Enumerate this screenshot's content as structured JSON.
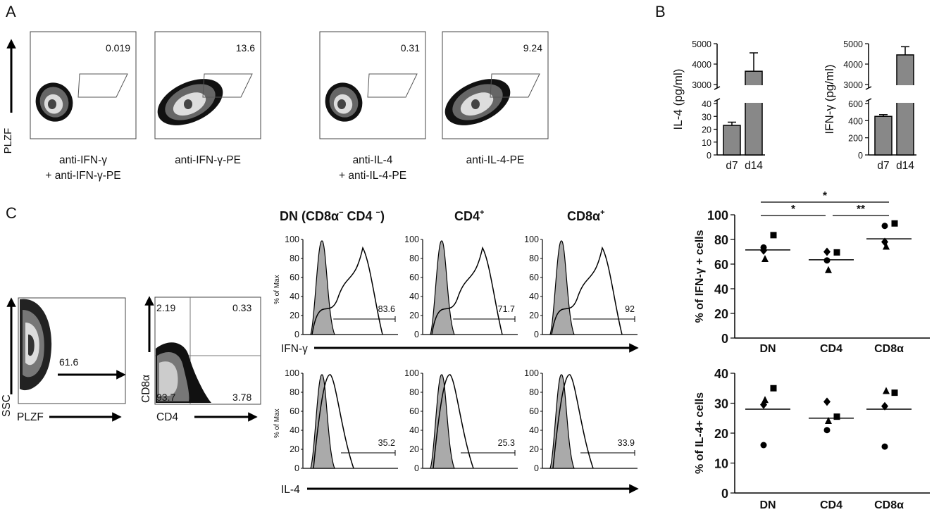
{
  "panels": {
    "a": "A",
    "b": "B",
    "c": "C"
  },
  "panel_a": {
    "y_label": "PLZF",
    "plots": [
      {
        "value": "0.019",
        "caption1": "anti-IFN-γ",
        "caption2": "+ anti-IFN-γ-PE"
      },
      {
        "value": "13.6",
        "caption1": "anti-IFN-γ-PE",
        "caption2": ""
      },
      {
        "value": "0.31",
        "caption1": "anti-IL-4",
        "caption2": "+ anti-IL-4-PE"
      },
      {
        "value": "9.24",
        "caption1": "anti-IL-4-PE",
        "caption2": ""
      }
    ]
  },
  "panel_c_gating": {
    "ssc_label": "SSC",
    "plzf_label": "PLZF",
    "plzf_gate_value": "61.6",
    "cd8_label": "CD8α",
    "cd4_label": "CD4",
    "quadrants": {
      "ul": "2.19",
      "ur": "0.33",
      "ll": "93.7",
      "lr": "3.78"
    }
  },
  "panel_c_histograms": {
    "headers": [
      "DN (CD8α",
      "−",
      " CD4 ",
      "−",
      ")"
    ],
    "header_cd4": "CD4",
    "header_cd8": "CD8α",
    "sup_plus": "+",
    "y_title": "% of Max",
    "y_ticks": [
      "0",
      "20",
      "40",
      "60",
      "80",
      "100"
    ],
    "row1_label": "IFN-γ",
    "row2_label": "IL-4",
    "row1_values": [
      "83.6",
      "71.7",
      "92"
    ],
    "row2_values": [
      "35.2",
      "25.3",
      "33.9"
    ]
  },
  "chart_data": [
    {
      "type": "bar",
      "categories": [
        "d7",
        "d14"
      ],
      "values": [
        23,
        3650
      ],
      "errors": [
        2.5,
        900
      ],
      "ylabel": "IL-4 (pg/ml)",
      "broken_axis": {
        "lower": [
          0,
          40
        ],
        "upper": [
          3000,
          5000
        ]
      },
      "y_ticks_lower": [
        "0",
        "10",
        "20",
        "30",
        "40"
      ],
      "y_ticks_upper": [
        "3000",
        "4000",
        "5000"
      ]
    },
    {
      "type": "bar",
      "categories": [
        "d7",
        "d14"
      ],
      "values": [
        450,
        4450
      ],
      "errors": [
        20,
        400
      ],
      "ylabel": "IFN-γ (pg/ml)",
      "broken_axis": {
        "lower": [
          0,
          600
        ],
        "upper": [
          3000,
          5000
        ]
      },
      "y_ticks_lower": [
        "0",
        "200",
        "400",
        "600"
      ],
      "y_ticks_upper": [
        "3000",
        "4000",
        "5000"
      ]
    },
    {
      "type": "scatter",
      "categories": [
        "DN",
        "CD4",
        "CD8α"
      ],
      "ylabel": "% of IFN-γ + cells",
      "ylim": [
        0,
        100
      ],
      "y_ticks": [
        "0",
        "20",
        "40",
        "60",
        "80",
        "100"
      ],
      "means": [
        71.5,
        63.5,
        80.5
      ],
      "points": [
        {
          "cat": 0,
          "marker": "square",
          "y": 83.5
        },
        {
          "cat": 0,
          "marker": "circle",
          "y": 73.5
        },
        {
          "cat": 0,
          "marker": "diamond",
          "y": 71
        },
        {
          "cat": 0,
          "marker": "triangle",
          "y": 64
        },
        {
          "cat": 1,
          "marker": "diamond",
          "y": 70
        },
        {
          "cat": 1,
          "marker": "square",
          "y": 69.5
        },
        {
          "cat": 1,
          "marker": "circle",
          "y": 63
        },
        {
          "cat": 1,
          "marker": "triangle",
          "y": 55
        },
        {
          "cat": 2,
          "marker": "circle",
          "y": 91
        },
        {
          "cat": 2,
          "marker": "square",
          "y": 93
        },
        {
          "cat": 2,
          "marker": "diamond",
          "y": 78
        },
        {
          "cat": 2,
          "marker": "triangle",
          "y": 74
        }
      ],
      "significance": [
        {
          "from": 0,
          "to": 2,
          "label": "*"
        },
        {
          "from": 0,
          "to": 1,
          "label": "*"
        },
        {
          "from": 1,
          "to": 2,
          "label": "**"
        }
      ]
    },
    {
      "type": "scatter",
      "categories": [
        "DN",
        "CD4",
        "CD8α"
      ],
      "ylabel": "% of IL-4+ cells",
      "ylim": [
        0,
        40
      ],
      "y_ticks": [
        "0",
        "10",
        "20",
        "30",
        "40"
      ],
      "means": [
        28,
        25,
        28
      ],
      "points": [
        {
          "cat": 0,
          "marker": "square",
          "y": 35
        },
        {
          "cat": 0,
          "marker": "triangle",
          "y": 31
        },
        {
          "cat": 0,
          "marker": "diamond",
          "y": 29.5
        },
        {
          "cat": 0,
          "marker": "circle",
          "y": 16
        },
        {
          "cat": 1,
          "marker": "diamond",
          "y": 30.5
        },
        {
          "cat": 1,
          "marker": "square",
          "y": 25.5
        },
        {
          "cat": 1,
          "marker": "triangle",
          "y": 24
        },
        {
          "cat": 1,
          "marker": "circle",
          "y": 21
        },
        {
          "cat": 2,
          "marker": "square",
          "y": 33.5
        },
        {
          "cat": 2,
          "marker": "triangle",
          "y": 34
        },
        {
          "cat": 2,
          "marker": "diamond",
          "y": 29
        },
        {
          "cat": 2,
          "marker": "circle",
          "y": 15.5
        }
      ]
    }
  ]
}
